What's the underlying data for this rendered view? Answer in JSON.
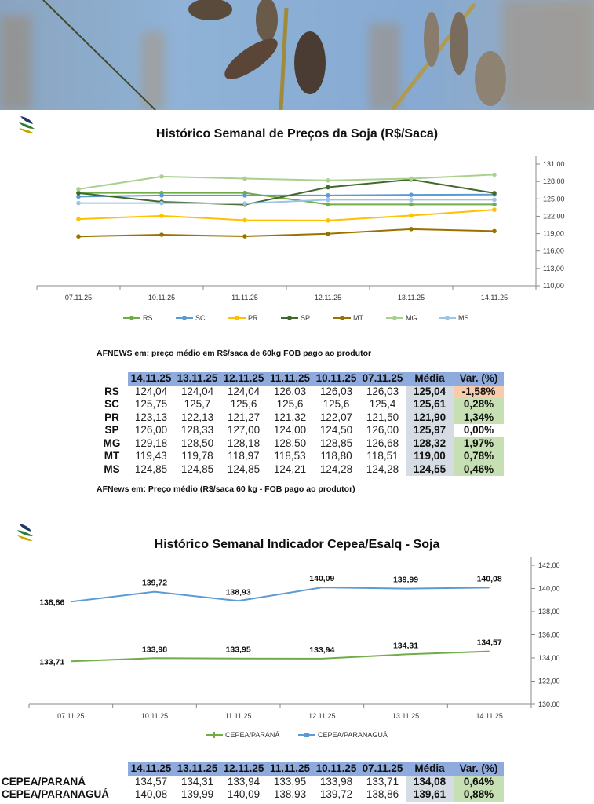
{
  "brand": {
    "logo_text": "AFNEWS"
  },
  "colors": {
    "header_bg": "#8faadc",
    "avg_bg": "#d6dce4",
    "positive_bg": "#c6e0b4",
    "negative_bg": "#f8cbad",
    "neutral_bg": "#ffffff"
  },
  "chart_data": [
    {
      "type": "line",
      "title": "Histórico Semanal de Preços da Soja (R$/Saca)",
      "x": [
        "07.11.25",
        "10.11.25",
        "11.11.25",
        "12.11.25",
        "13.11.25",
        "14.11.25"
      ],
      "ylim": [
        110,
        131
      ],
      "yticks": [
        "110,00",
        "113,00",
        "116,00",
        "119,00",
        "122,00",
        "125,00",
        "128,00",
        "131,00"
      ],
      "ytick_values": [
        110,
        113,
        116,
        119,
        122,
        125,
        128,
        131
      ],
      "y_axis_side": "right",
      "legend_position": "bottom",
      "grid": false,
      "series": [
        {
          "name": "RS",
          "color": "#70ad47",
          "values": [
            126.03,
            126.03,
            126.03,
            124.04,
            124.04,
            124.04
          ]
        },
        {
          "name": "SC",
          "color": "#5b9bd5",
          "values": [
            125.4,
            125.6,
            125.6,
            125.6,
            125.7,
            125.75
          ]
        },
        {
          "name": "PR",
          "color": "#ffc000",
          "values": [
            121.5,
            122.07,
            121.32,
            121.27,
            122.13,
            123.13
          ]
        },
        {
          "name": "SP",
          "color": "#43682b",
          "values": [
            126.0,
            124.5,
            124.0,
            127.0,
            128.33,
            126.0
          ]
        },
        {
          "name": "MT",
          "color": "#997300",
          "values": [
            118.51,
            118.8,
            118.53,
            118.97,
            119.78,
            119.43
          ]
        },
        {
          "name": "MG",
          "color": "#a9d18e",
          "values": [
            126.68,
            128.85,
            128.5,
            128.18,
            128.5,
            129.18
          ]
        },
        {
          "name": "MS",
          "color": "#9dc3e6",
          "values": [
            124.28,
            124.28,
            124.21,
            124.85,
            124.85,
            124.85
          ]
        }
      ]
    },
    {
      "type": "line",
      "title": "Histórico Semanal Indicador Cepea/Esalq - Soja",
      "x": [
        "07.11.25",
        "10.11.25",
        "11.11.25",
        "12.11.25",
        "13.11.25",
        "14.11.25"
      ],
      "ylim": [
        130,
        142
      ],
      "yticks": [
        "130,00",
        "132,00",
        "134,00",
        "136,00",
        "138,00",
        "140,00",
        "142,00"
      ],
      "ytick_values": [
        130,
        132,
        134,
        136,
        138,
        140,
        142
      ],
      "y_axis_side": "right",
      "legend_position": "bottom",
      "grid": false,
      "series": [
        {
          "name": "CEPEA/PARANÁ",
          "color": "#70ad47",
          "marker": "plus",
          "values": [
            133.71,
            133.98,
            133.95,
            133.94,
            134.31,
            134.57
          ],
          "labels": [
            "133,71",
            "133,98",
            "133,95",
            "133,94",
            "134,31",
            "134,57"
          ]
        },
        {
          "name": "CEPEA/PARANAGUÁ",
          "color": "#5b9bd5",
          "marker": "square",
          "values": [
            138.86,
            139.72,
            138.93,
            140.09,
            139.99,
            140.08
          ],
          "labels": [
            "138,86",
            "139,72",
            "138,93",
            "140,09",
            "139,99",
            "140,08"
          ]
        }
      ]
    }
  ],
  "table1": {
    "note_top": "AFNEWS em: preço médio em R$/saca de 60kg FOB pago ao produtor",
    "note_bottom": "AFNews em: Preço médio (R$/saca 60 kg - FOB pago ao produtor)",
    "headers": [
      "14.11.25",
      "13.11.25",
      "12.11.25",
      "11.11.25",
      "10.11.25",
      "07.11.25",
      "Média",
      "Var. (%)"
    ],
    "rows": [
      {
        "label": "RS",
        "values": [
          "124,04",
          "124,04",
          "124,04",
          "126,03",
          "126,03",
          "126,03"
        ],
        "avg": "125,04",
        "var": "-1,58%",
        "status": "negative"
      },
      {
        "label": "SC",
        "values": [
          "125,75",
          "125,7",
          "125,6",
          "125,6",
          "125,6",
          "125,4"
        ],
        "avg": "125,61",
        "var": "0,28%",
        "status": "positive"
      },
      {
        "label": "PR",
        "values": [
          "123,13",
          "122,13",
          "121,27",
          "121,32",
          "122,07",
          "121,50"
        ],
        "avg": "121,90",
        "var": "1,34%",
        "status": "positive"
      },
      {
        "label": "SP",
        "values": [
          "126,00",
          "128,33",
          "127,00",
          "124,00",
          "124,50",
          "126,00"
        ],
        "avg": "125,97",
        "var": "0,00%",
        "status": "neutral"
      },
      {
        "label": "MG",
        "values": [
          "129,18",
          "128,50",
          "128,18",
          "128,50",
          "128,85",
          "126,68"
        ],
        "avg": "128,32",
        "var": "1,97%",
        "status": "positive"
      },
      {
        "label": "MT",
        "values": [
          "119,43",
          "119,78",
          "118,97",
          "118,53",
          "118,80",
          "118,51"
        ],
        "avg": "119,00",
        "var": "0,78%",
        "status": "positive"
      },
      {
        "label": "MS",
        "values": [
          "124,85",
          "124,85",
          "124,85",
          "124,21",
          "124,28",
          "124,28"
        ],
        "avg": "124,55",
        "var": "0,46%",
        "status": "positive"
      }
    ]
  },
  "table2": {
    "headers": [
      "14.11.25",
      "13.11.25",
      "12.11.25",
      "11.11.25",
      "10.11.25",
      "07.11.25",
      "Média",
      "Var. (%)"
    ],
    "rows": [
      {
        "label": "CEPEA/PARANÁ",
        "values": [
          "134,57",
          "134,31",
          "133,94",
          "133,95",
          "133,98",
          "133,71"
        ],
        "avg": "134,08",
        "var": "0,64%",
        "status": "positive"
      },
      {
        "label": "CEPEA/PARANAGUÁ",
        "values": [
          "140,08",
          "139,99",
          "140,09",
          "138,93",
          "139,72",
          "138,86"
        ],
        "avg": "139,61",
        "var": "0,88%",
        "status": "positive"
      }
    ]
  }
}
